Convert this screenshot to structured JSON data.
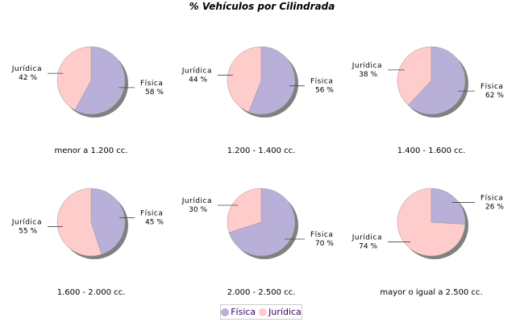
{
  "chart_data": {
    "type": "pie",
    "title": "% Vehículos por Cilindrada",
    "series_names": [
      "Física",
      "Jurídica"
    ],
    "colors": {
      "Física": "#b8b0d8",
      "Jurídica": "#ffcccc",
      "shadow": "#808080"
    },
    "legend_position": "bottom",
    "pies": [
      {
        "category": "menor a 1.200 cc.",
        "values": [
          58,
          42
        ],
        "labels": [
          "58 %",
          "42 %"
        ]
      },
      {
        "category": "1.200 - 1.400 cc.",
        "values": [
          56,
          44
        ],
        "labels": [
          "56 %",
          "44 %"
        ]
      },
      {
        "category": "1.400 - 1.600 cc.",
        "values": [
          62,
          38
        ],
        "labels": [
          "62 %",
          "38 %"
        ]
      },
      {
        "category": "1.600 - 2.000 cc.",
        "values": [
          45,
          55
        ],
        "labels": [
          "45 %",
          "55 %"
        ]
      },
      {
        "category": "2.000 - 2.500 cc.",
        "values": [
          70,
          30
        ],
        "labels": [
          "70 %",
          "30 %"
        ]
      },
      {
        "category": "mayor o igual a 2.500 cc.",
        "values": [
          26,
          74
        ],
        "labels": [
          "26 %",
          "74 %"
        ]
      }
    ]
  }
}
